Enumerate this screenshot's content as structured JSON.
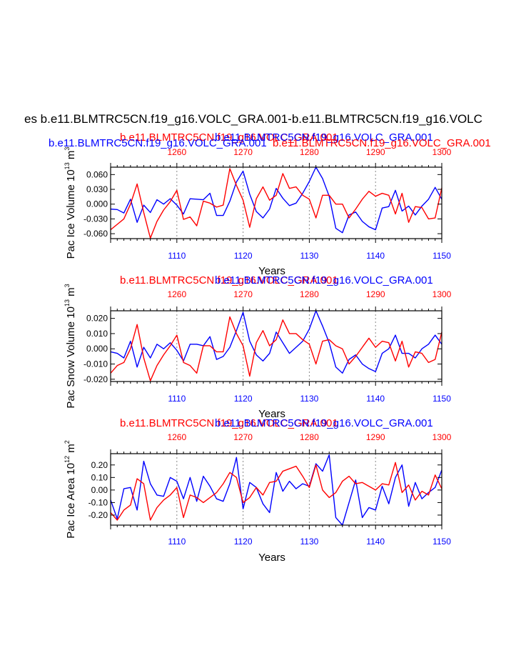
{
  "figure_title": "es b.e11.BLMTRC5CN.f19_g16.VOLC_GRA.001-b.e11.BLMTRC5CN.f19_g16.VOLC",
  "colors": {
    "series_a": "#0000ff",
    "series_b": "#ff0000",
    "axis": "#000000",
    "vline": "#888888"
  },
  "chart_data": [
    {
      "type": "line",
      "title_left": "b.e11.BLMTRC5CN.f19_g16.VOLC_GRA.001",
      "title_right": "b.e11.BLMTRC5CN.f19_g16.VOLC_GRA.001",
      "title_center_red": "b.e11.BLMTRC5CN.f19_g16.VOLC_GRA.001",
      "title_center_blue": "b.e11.BLMTRC5CN.f19_g16.VOLC_GRA.001",
      "ylabel": "Pac Ice Volume 10",
      "ylabel_sup": "13",
      "ylabel_unit": "m",
      "ylabel_unit_sup": "3",
      "xlabel": "Years",
      "ylim": [
        -0.07,
        0.075
      ],
      "yticks": [
        -0.06,
        -0.03,
        0.0,
        0.03,
        0.06
      ],
      "ytick_labels": [
        "-0.060",
        "-0.030",
        "0.000",
        "0.030",
        "0.060"
      ],
      "bottom_xlim": [
        1100,
        1150
      ],
      "bottom_ticks": [
        1110,
        1120,
        1130,
        1140,
        1150
      ],
      "top_xlim": [
        1250,
        1300
      ],
      "top_ticks": [
        1260,
        1270,
        1280,
        1290,
        1300
      ],
      "vlines": [
        1110,
        1120,
        1130,
        1140
      ],
      "series": [
        {
          "name": "b.e11.BLMTRC5CN.f19_g16.VOLC_GRA.001",
          "axis": "bottom",
          "color": "#0000ff",
          "x": [
            1100,
            1101,
            1102,
            1103,
            1104,
            1105,
            1106,
            1107,
            1108,
            1109,
            1110,
            1111,
            1112,
            1113,
            1114,
            1115,
            1116,
            1117,
            1118,
            1119,
            1120,
            1121,
            1122,
            1123,
            1124,
            1125,
            1126,
            1127,
            1128,
            1129,
            1130,
            1131,
            1132,
            1133,
            1134,
            1135,
            1136,
            1137,
            1138,
            1139,
            1140,
            1141,
            1142,
            1143,
            1144,
            1145,
            1146,
            1147,
            1148,
            1149,
            1150
          ],
          "values": [
            -0.01,
            -0.011,
            -0.018,
            0.01,
            -0.037,
            -0.002,
            -0.017,
            0.009,
            0.0,
            0.011,
            -0.002,
            -0.02,
            0.011,
            0.01,
            0.009,
            0.022,
            -0.023,
            -0.023,
            0.006,
            0.045,
            0.067,
            0.02,
            -0.015,
            -0.028,
            -0.01,
            0.032,
            0.012,
            -0.003,
            0.002,
            0.022,
            0.046,
            0.075,
            0.052,
            0.016,
            -0.049,
            -0.058,
            -0.022,
            -0.016,
            -0.035,
            -0.046,
            -0.052,
            -0.008,
            -0.005,
            0.028,
            -0.014,
            -0.004,
            -0.022,
            -0.004,
            0.01,
            0.034,
            0.01
          ]
        },
        {
          "name": "b.e11.BLMTRC5CN.f19_g16.VOLC_GRA.001",
          "axis": "top",
          "color": "#ff0000",
          "x": [
            1250,
            1251,
            1252,
            1253,
            1254,
            1255,
            1256,
            1257,
            1258,
            1259,
            1260,
            1261,
            1262,
            1263,
            1264,
            1265,
            1266,
            1267,
            1268,
            1269,
            1270,
            1271,
            1272,
            1273,
            1274,
            1275,
            1276,
            1277,
            1278,
            1279,
            1280,
            1281,
            1282,
            1283,
            1284,
            1285,
            1286,
            1287,
            1288,
            1289,
            1290,
            1291,
            1292,
            1293,
            1294,
            1295,
            1296,
            1297,
            1298,
            1299,
            1300
          ],
          "values": [
            -0.052,
            -0.041,
            -0.03,
            0.0,
            0.041,
            -0.017,
            -0.069,
            -0.035,
            -0.012,
            0.005,
            0.028,
            -0.031,
            -0.026,
            -0.044,
            0.006,
            0.002,
            -0.006,
            -0.002,
            0.072,
            0.038,
            0.008,
            -0.047,
            0.011,
            0.035,
            0.008,
            0.018,
            0.062,
            0.032,
            0.035,
            0.018,
            0.01,
            -0.028,
            0.018,
            0.018,
            0.0,
            0.0,
            -0.028,
            -0.01,
            0.01,
            0.026,
            0.016,
            0.022,
            0.018,
            -0.02,
            0.022,
            -0.037,
            -0.005,
            -0.007,
            -0.03,
            -0.028,
            0.033
          ]
        }
      ]
    },
    {
      "type": "line",
      "title_left": "b.e11.BLMTRC5CN.f19_g16.VOLC_GRA.001",
      "title_right": "b.e11.BLMTRC5CN.f19_g16.VOLC_GRA.001",
      "ylabel": "Pac Snow Volume 10",
      "ylabel_sup": "13",
      "ylabel_unit": "m",
      "ylabel_unit_sup": "3",
      "xlabel": "Years",
      "ylim": [
        -0.0215,
        0.025
      ],
      "yticks": [
        -0.02,
        -0.01,
        0.0,
        0.01,
        0.02
      ],
      "ytick_labels": [
        "-0.020",
        "-0.010",
        "0.000",
        "0.010",
        "0.020"
      ],
      "bottom_xlim": [
        1100,
        1150
      ],
      "bottom_ticks": [
        1110,
        1120,
        1130,
        1140,
        1150
      ],
      "top_xlim": [
        1250,
        1300
      ],
      "top_ticks": [
        1260,
        1270,
        1280,
        1290,
        1300
      ],
      "vlines": [
        1110,
        1120,
        1130,
        1140
      ],
      "series": [
        {
          "name": "b.e11.BLMTRC5CN.f19_g16.VOLC_GRA.001",
          "axis": "bottom",
          "color": "#0000ff",
          "x": [
            1100,
            1101,
            1102,
            1103,
            1104,
            1105,
            1106,
            1107,
            1108,
            1109,
            1110,
            1111,
            1112,
            1113,
            1114,
            1115,
            1116,
            1117,
            1118,
            1119,
            1120,
            1121,
            1122,
            1123,
            1124,
            1125,
            1126,
            1127,
            1128,
            1129,
            1130,
            1131,
            1132,
            1133,
            1134,
            1135,
            1136,
            1137,
            1138,
            1139,
            1140,
            1141,
            1142,
            1143,
            1144,
            1145,
            1146,
            1147,
            1148,
            1149,
            1150
          ],
          "values": [
            -0.002,
            -0.003,
            -0.006,
            0.005,
            -0.012,
            0.001,
            -0.006,
            0.003,
            0.0,
            0.004,
            -0.001,
            -0.008,
            0.003,
            0.003,
            0.002,
            0.008,
            -0.007,
            -0.005,
            0.001,
            0.012,
            0.024,
            0.005,
            -0.004,
            -0.008,
            -0.003,
            0.011,
            0.004,
            -0.003,
            0.001,
            0.005,
            0.013,
            0.025,
            0.015,
            0.004,
            -0.012,
            -0.016,
            -0.007,
            -0.004,
            -0.01,
            -0.013,
            -0.015,
            -0.003,
            0.0,
            0.009,
            -0.003,
            -0.003,
            -0.006,
            0.0,
            0.003,
            0.009,
            0.003
          ]
        },
        {
          "name": "b.e11.BLMTRC5CN.f19_g16.VOLC_GRA.001",
          "axis": "top",
          "color": "#ff0000",
          "x": [
            1250,
            1251,
            1252,
            1253,
            1254,
            1255,
            1256,
            1257,
            1258,
            1259,
            1260,
            1261,
            1262,
            1263,
            1264,
            1265,
            1266,
            1267,
            1268,
            1269,
            1270,
            1271,
            1272,
            1273,
            1274,
            1275,
            1276,
            1277,
            1278,
            1279,
            1280,
            1281,
            1282,
            1283,
            1284,
            1285,
            1286,
            1287,
            1288,
            1289,
            1290,
            1291,
            1292,
            1293,
            1294,
            1295,
            1296,
            1297,
            1298,
            1299,
            1300
          ],
          "values": [
            -0.016,
            -0.011,
            -0.009,
            0.0,
            0.016,
            -0.006,
            -0.021,
            -0.011,
            -0.004,
            0.002,
            0.009,
            -0.009,
            -0.011,
            -0.016,
            0.002,
            0.002,
            -0.002,
            -0.002,
            0.021,
            0.01,
            0.002,
            -0.018,
            0.004,
            0.012,
            0.002,
            0.006,
            0.019,
            0.01,
            0.01,
            0.006,
            0.003,
            -0.01,
            0.005,
            0.006,
            0.002,
            0.0,
            -0.01,
            -0.005,
            0.001,
            0.007,
            0.001,
            0.005,
            0.004,
            -0.008,
            0.005,
            -0.012,
            -0.002,
            -0.003,
            -0.009,
            -0.007,
            0.011
          ]
        }
      ]
    },
    {
      "type": "line",
      "title_left": "b.e11.BLMTRC5CN.f19_g16.VOLC_GRA.001",
      "title_right": "b.e11.BLMTRC5CN.f19_g16.VOLC_GRA.001",
      "ylabel": "Pac Ice Area 10",
      "ylabel_sup": "12",
      "ylabel_unit": "m",
      "ylabel_unit_sup": "2",
      "xlabel": "Years",
      "ylim": [
        -0.28,
        0.29
      ],
      "yticks": [
        -0.2,
        -0.1,
        0.0,
        0.1,
        0.2
      ],
      "ytick_labels": [
        "-0.20",
        "-0.10",
        "0.00",
        "0.10",
        "0.20"
      ],
      "bottom_xlim": [
        1100,
        1150
      ],
      "bottom_ticks": [
        1110,
        1120,
        1130,
        1140,
        1150
      ],
      "top_xlim": [
        1250,
        1300
      ],
      "top_ticks": [
        1260,
        1270,
        1280,
        1290,
        1300
      ],
      "vlines": [
        1110,
        1120,
        1130,
        1140
      ],
      "series": [
        {
          "name": "b.e11.BLMTRC5CN.f19_g16.VOLC_GRA.001",
          "axis": "bottom",
          "color": "#0000ff",
          "x": [
            1100,
            1101,
            1102,
            1103,
            1104,
            1105,
            1106,
            1107,
            1108,
            1109,
            1110,
            1111,
            1112,
            1113,
            1114,
            1115,
            1116,
            1117,
            1118,
            1119,
            1120,
            1121,
            1122,
            1123,
            1124,
            1125,
            1126,
            1127,
            1128,
            1129,
            1130,
            1131,
            1132,
            1133,
            1134,
            1135,
            1136,
            1137,
            1138,
            1139,
            1140,
            1141,
            1142,
            1143,
            1144,
            1145,
            1146,
            1147,
            1148,
            1149,
            1150
          ],
          "values": [
            -0.08,
            -0.23,
            0.01,
            0.02,
            -0.16,
            0.23,
            0.05,
            -0.04,
            -0.05,
            0.1,
            0.07,
            -0.07,
            0.1,
            -0.09,
            0.11,
            0.03,
            -0.07,
            -0.09,
            0.05,
            0.26,
            -0.15,
            0.06,
            0.02,
            -0.11,
            -0.18,
            0.14,
            -0.01,
            0.07,
            0.01,
            0.05,
            0.03,
            0.21,
            0.15,
            0.28,
            -0.22,
            -0.28,
            -0.1,
            0.08,
            -0.22,
            -0.14,
            -0.16,
            0.03,
            -0.11,
            0.1,
            0.2,
            -0.13,
            0.06,
            -0.07,
            -0.02,
            0.02,
            0.16
          ]
        },
        {
          "name": "b.e11.BLMTRC5CN.f19_g16.VOLC_GRA.001",
          "axis": "top",
          "color": "#ff0000",
          "x": [
            1250,
            1251,
            1252,
            1253,
            1254,
            1255,
            1256,
            1257,
            1258,
            1259,
            1260,
            1261,
            1262,
            1263,
            1264,
            1265,
            1266,
            1267,
            1268,
            1269,
            1270,
            1271,
            1272,
            1273,
            1274,
            1275,
            1276,
            1277,
            1278,
            1279,
            1280,
            1281,
            1282,
            1283,
            1284,
            1285,
            1286,
            1287,
            1288,
            1289,
            1290,
            1291,
            1292,
            1293,
            1294,
            1295,
            1296,
            1297,
            1298,
            1299,
            1300
          ],
          "values": [
            -0.18,
            -0.24,
            -0.16,
            -0.12,
            0.09,
            0.05,
            -0.24,
            -0.14,
            -0.08,
            -0.04,
            0.02,
            -0.22,
            -0.04,
            -0.06,
            -0.1,
            -0.06,
            -0.02,
            0.05,
            0.14,
            0.1,
            -0.1,
            -0.06,
            0.02,
            -0.04,
            0.06,
            0.07,
            0.15,
            0.17,
            0.19,
            0.11,
            0.02,
            0.2,
            0.0,
            -0.06,
            -0.02,
            0.07,
            0.11,
            0.05,
            0.06,
            0.03,
            0.0,
            0.05,
            0.04,
            0.22,
            -0.02,
            0.04,
            -0.08,
            -0.01,
            -0.04,
            0.12,
            0.01
          ]
        }
      ]
    }
  ]
}
